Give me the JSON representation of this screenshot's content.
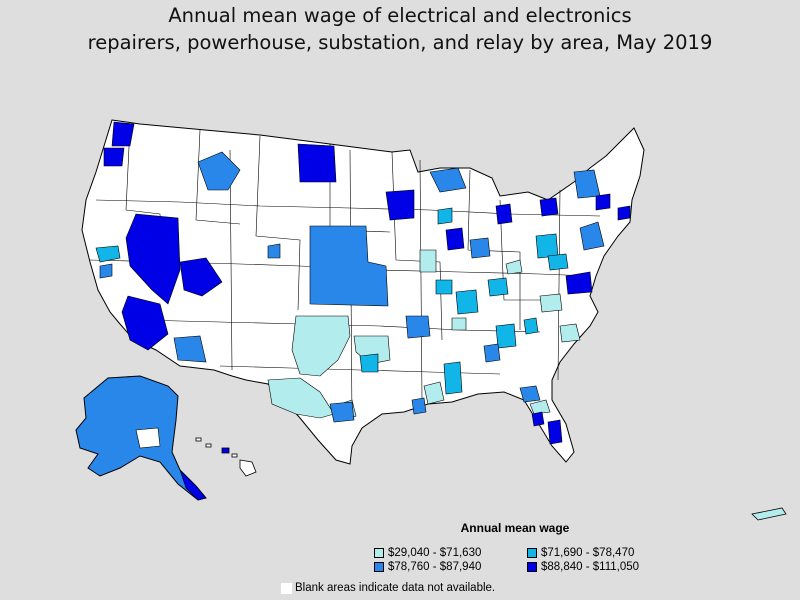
{
  "title": {
    "line1": "Annual mean wage of electrical and electronics",
    "line2": "repairers, powerhouse, substation, and relay by area, May 2019"
  },
  "legend": {
    "title": "Annual mean wage",
    "items": [
      {
        "label": "$29,040 - $71,630",
        "color": "#b3ecec"
      },
      {
        "label": "$71,690 - $78,470",
        "color": "#12b5e8"
      },
      {
        "label": "$78,760 - $87,940",
        "color": "#2a87ea"
      },
      {
        "label": "$88,840 - $111,050",
        "color": "#0000e6"
      }
    ]
  },
  "note": "Blank areas indicate data not available.",
  "colors": {
    "background": "#dedede",
    "blank": "#ffffff",
    "border": "#000000"
  }
}
